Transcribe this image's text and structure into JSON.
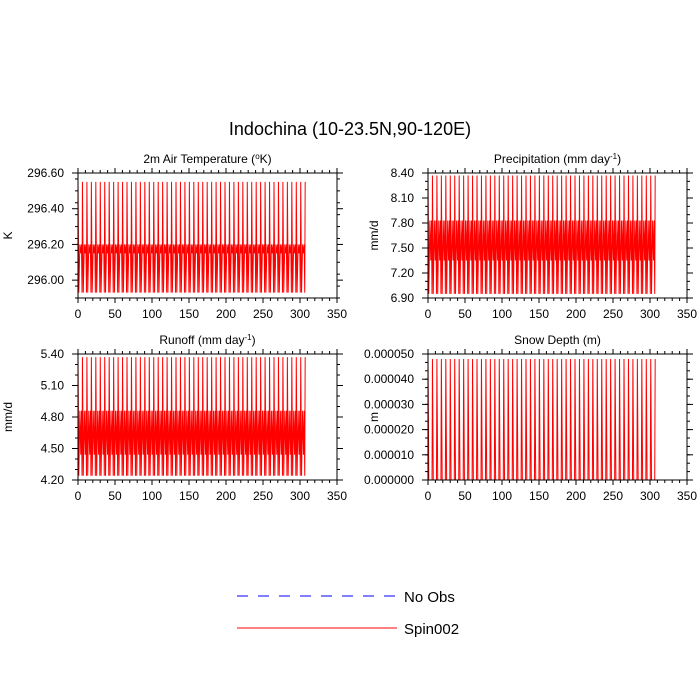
{
  "chart_title": "Indochina (10-23.5N,90-120E)",
  "legend": [
    {
      "label": "No Obs",
      "color": "#0000ff",
      "dashed": true
    },
    {
      "label": "Spin002",
      "color": "#ff0000",
      "dashed": false
    }
  ],
  "chart_data": [
    {
      "type": "line",
      "title": "2m Air Temperature (°K)",
      "title_base": "2m Air Temperature (",
      "title_sup": "o",
      "title_tail": "K)",
      "ylabel": "K",
      "xlim": [
        0,
        350
      ],
      "ylim": [
        295.9,
        296.6
      ],
      "xticks": [
        "0",
        "50",
        "100",
        "150",
        "200",
        "250",
        "300",
        "350"
      ],
      "yticks": [
        "296.60",
        "296.40",
        "296.20",
        "296.00"
      ],
      "ytick_values": [
        296.6,
        296.4,
        296.2,
        296.0
      ],
      "series": [
        {
          "name": "Spin002",
          "color": "#ff0000",
          "x_start": 0,
          "x_end": 307,
          "cycles": 51,
          "high": 296.55,
          "low": 295.93,
          "high2": 296.2,
          "low2": 296.15
        }
      ]
    },
    {
      "type": "line",
      "title": "Precipitation (mm day-1)",
      "title_base": "Precipitation (mm day",
      "title_sup": "-1",
      "title_tail": ")",
      "ylabel": "mm/d",
      "xlim": [
        0,
        350
      ],
      "ylim": [
        6.9,
        8.4
      ],
      "xticks": [
        "0",
        "50",
        "100",
        "150",
        "200",
        "250",
        "300",
        "350"
      ],
      "yticks": [
        "8.40",
        "8.10",
        "7.80",
        "7.50",
        "7.20",
        "6.90"
      ],
      "ytick_values": [
        8.4,
        8.1,
        7.8,
        7.5,
        7.2,
        6.9
      ],
      "series": [
        {
          "name": "Spin002",
          "color": "#ff0000",
          "x_start": 0,
          "x_end": 307,
          "cycles": 51,
          "high": 8.37,
          "low": 6.95,
          "high2": 7.83,
          "low2": 7.35
        }
      ]
    },
    {
      "type": "line",
      "title": "Runoff (mm day-1)",
      "title_base": "Runoff (mm day",
      "title_sup": "-1",
      "title_tail": ")",
      "ylabel": "mm/d",
      "xlim": [
        0,
        350
      ],
      "ylim": [
        4.2,
        5.4
      ],
      "xticks": [
        "0",
        "50",
        "100",
        "150",
        "200",
        "250",
        "300",
        "350"
      ],
      "yticks": [
        "5.40",
        "5.10",
        "4.80",
        "4.50",
        "4.20"
      ],
      "ytick_values": [
        5.4,
        5.1,
        4.8,
        4.5,
        4.2
      ],
      "series": [
        {
          "name": "Spin002",
          "color": "#ff0000",
          "x_start": 0,
          "x_end": 307,
          "cycles": 51,
          "high": 5.37,
          "low": 4.24,
          "high2": 4.86,
          "low2": 4.44
        }
      ]
    },
    {
      "type": "line",
      "title": "Snow Depth (m)",
      "title_base": "Snow Depth (m)",
      "title_sup": "",
      "title_tail": "",
      "ylabel": "m",
      "xlim": [
        0,
        350
      ],
      "ylim": [
        0,
        5e-05
      ],
      "xticks": [
        "0",
        "50",
        "100",
        "150",
        "200",
        "250",
        "300",
        "350"
      ],
      "yticks": [
        "0.000050",
        "0.000040",
        "0.000030",
        "0.000020",
        "0.000010",
        "0.000000"
      ],
      "ytick_values": [
        5e-05,
        4e-05,
        3e-05,
        2e-05,
        1e-05,
        0
      ],
      "series": [
        {
          "name": "Spin002",
          "color": "#ff0000",
          "x_start": 0,
          "x_end": 307,
          "cycles": 51,
          "high": 4.8e-05,
          "low": 0.0,
          "high2": 0.0,
          "low2": 0.0
        }
      ]
    }
  ]
}
